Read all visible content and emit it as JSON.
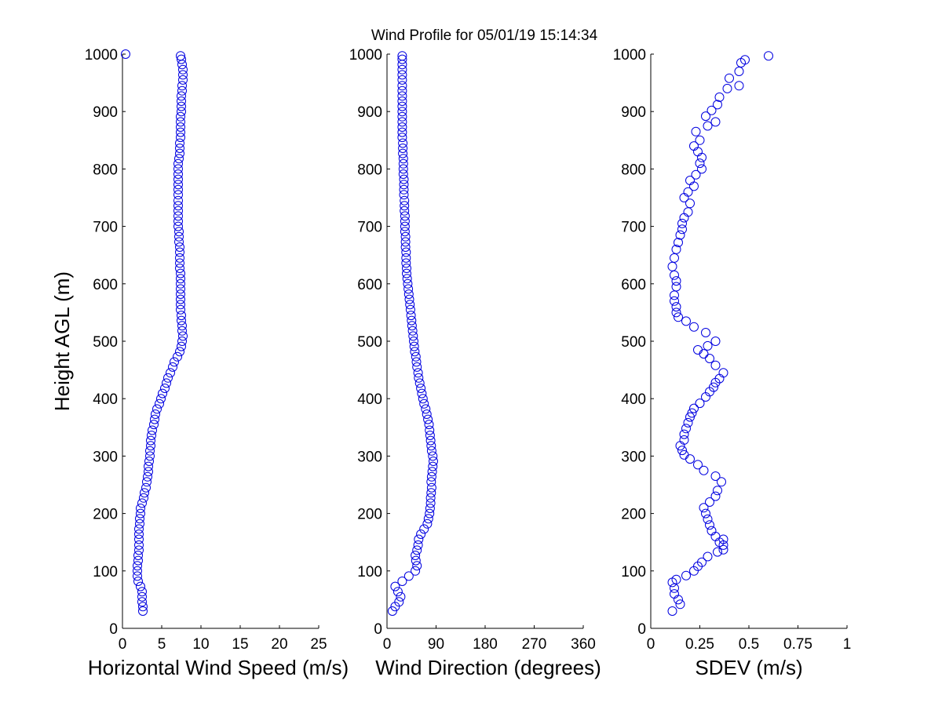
{
  "colors": {
    "marker": "#0000e0",
    "axes": "#000000",
    "background": "#ffffff"
  },
  "chart_data": {
    "title": "Wind Profile for  05/01/19 15:14:34",
    "ylabel": "Height AGL (m)",
    "ylim": [
      0,
      1000
    ],
    "yticks": [
      0,
      100,
      200,
      300,
      400,
      500,
      600,
      700,
      800,
      900,
      1000
    ],
    "marker": "circle",
    "panels": [
      {
        "type": "scatter",
        "xlabel": "Horizontal Wind Speed (m/s)",
        "xlim": [
          0,
          25
        ],
        "xticks": [
          0,
          5,
          10,
          15,
          20,
          25
        ],
        "points": [
          [
            2.6,
            30
          ],
          [
            2.6,
            38
          ],
          [
            2.5,
            46
          ],
          [
            2.5,
            55
          ],
          [
            2.5,
            64
          ],
          [
            2.3,
            73
          ],
          [
            2.0,
            82
          ],
          [
            1.9,
            91
          ],
          [
            1.9,
            100
          ],
          [
            1.9,
            109
          ],
          [
            2.0,
            118
          ],
          [
            2.0,
            127
          ],
          [
            2.1,
            136
          ],
          [
            2.1,
            145
          ],
          [
            2.1,
            155
          ],
          [
            2.1,
            164
          ],
          [
            2.1,
            173
          ],
          [
            2.2,
            182
          ],
          [
            2.2,
            191
          ],
          [
            2.3,
            200
          ],
          [
            2.3,
            209
          ],
          [
            2.5,
            218
          ],
          [
            2.7,
            227
          ],
          [
            2.8,
            236
          ],
          [
            3.0,
            245
          ],
          [
            3.1,
            255
          ],
          [
            3.2,
            264
          ],
          [
            3.3,
            273
          ],
          [
            3.3,
            282
          ],
          [
            3.4,
            291
          ],
          [
            3.5,
            300
          ],
          [
            3.5,
            309
          ],
          [
            3.6,
            318
          ],
          [
            3.6,
            327
          ],
          [
            3.7,
            336
          ],
          [
            3.8,
            345
          ],
          [
            4.0,
            355
          ],
          [
            4.1,
            364
          ],
          [
            4.2,
            373
          ],
          [
            4.4,
            382
          ],
          [
            4.7,
            391
          ],
          [
            4.9,
            400
          ],
          [
            5.1,
            409
          ],
          [
            5.4,
            418
          ],
          [
            5.6,
            427
          ],
          [
            5.8,
            436
          ],
          [
            6.1,
            445
          ],
          [
            6.4,
            455
          ],
          [
            6.6,
            464
          ],
          [
            7.0,
            473
          ],
          [
            7.3,
            482
          ],
          [
            7.5,
            491
          ],
          [
            7.6,
            500
          ],
          [
            7.7,
            509
          ],
          [
            7.6,
            518
          ],
          [
            7.6,
            527
          ],
          [
            7.5,
            536
          ],
          [
            7.5,
            545
          ],
          [
            7.4,
            555
          ],
          [
            7.4,
            564
          ],
          [
            7.4,
            573
          ],
          [
            7.4,
            582
          ],
          [
            7.4,
            591
          ],
          [
            7.4,
            600
          ],
          [
            7.4,
            609
          ],
          [
            7.4,
            618
          ],
          [
            7.3,
            627
          ],
          [
            7.3,
            636
          ],
          [
            7.3,
            645
          ],
          [
            7.3,
            655
          ],
          [
            7.3,
            664
          ],
          [
            7.2,
            673
          ],
          [
            7.2,
            682
          ],
          [
            7.2,
            691
          ],
          [
            7.1,
            700
          ],
          [
            7.1,
            709
          ],
          [
            7.1,
            718
          ],
          [
            7.1,
            727
          ],
          [
            7.1,
            736
          ],
          [
            7.1,
            745
          ],
          [
            7.1,
            755
          ],
          [
            7.1,
            764
          ],
          [
            7.1,
            773
          ],
          [
            7.1,
            782
          ],
          [
            7.1,
            791
          ],
          [
            7.1,
            800
          ],
          [
            7.1,
            809
          ],
          [
            7.2,
            818
          ],
          [
            7.3,
            827
          ],
          [
            7.3,
            836
          ],
          [
            7.3,
            845
          ],
          [
            7.4,
            855
          ],
          [
            7.4,
            864
          ],
          [
            7.4,
            873
          ],
          [
            7.4,
            882
          ],
          [
            7.4,
            891
          ],
          [
            7.5,
            900
          ],
          [
            7.5,
            909
          ],
          [
            7.5,
            918
          ],
          [
            7.5,
            927
          ],
          [
            7.6,
            936
          ],
          [
            7.6,
            945
          ],
          [
            7.7,
            955
          ],
          [
            7.7,
            964
          ],
          [
            7.7,
            973
          ],
          [
            7.6,
            982
          ],
          [
            7.5,
            991
          ],
          [
            7.4,
            997
          ],
          [
            0.4,
            1000
          ]
        ]
      },
      {
        "type": "scatter",
        "xlabel": "Wind Direction (degrees)",
        "xlim": [
          0,
          360
        ],
        "xticks": [
          0,
          90,
          180,
          270,
          360
        ],
        "points": [
          [
            10,
            30
          ],
          [
            15,
            38
          ],
          [
            22,
            46
          ],
          [
            25,
            55
          ],
          [
            20,
            64
          ],
          [
            15,
            73
          ],
          [
            28,
            82
          ],
          [
            40,
            91
          ],
          [
            52,
            100
          ],
          [
            55,
            109
          ],
          [
            53,
            118
          ],
          [
            52,
            127
          ],
          [
            55,
            136
          ],
          [
            57,
            145
          ],
          [
            58,
            155
          ],
          [
            62,
            164
          ],
          [
            68,
            173
          ],
          [
            74,
            182
          ],
          [
            76,
            191
          ],
          [
            78,
            200
          ],
          [
            79,
            209
          ],
          [
            80,
            218
          ],
          [
            80,
            227
          ],
          [
            81,
            236
          ],
          [
            82,
            245
          ],
          [
            81,
            255
          ],
          [
            82,
            264
          ],
          [
            83,
            273
          ],
          [
            84,
            282
          ],
          [
            85,
            291
          ],
          [
            84,
            300
          ],
          [
            82,
            309
          ],
          [
            81,
            318
          ],
          [
            80,
            327
          ],
          [
            79,
            336
          ],
          [
            78,
            345
          ],
          [
            77,
            355
          ],
          [
            75,
            364
          ],
          [
            73,
            373
          ],
          [
            71,
            382
          ],
          [
            68,
            391
          ],
          [
            66,
            400
          ],
          [
            64,
            409
          ],
          [
            62,
            418
          ],
          [
            60,
            427
          ],
          [
            58,
            436
          ],
          [
            57,
            445
          ],
          [
            55,
            455
          ],
          [
            54,
            464
          ],
          [
            53,
            473
          ],
          [
            51,
            482
          ],
          [
            50,
            491
          ],
          [
            49,
            500
          ],
          [
            48,
            509
          ],
          [
            47,
            518
          ],
          [
            46,
            527
          ],
          [
            45,
            536
          ],
          [
            44,
            545
          ],
          [
            43,
            555
          ],
          [
            42,
            564
          ],
          [
            41,
            573
          ],
          [
            40,
            582
          ],
          [
            39,
            591
          ],
          [
            38,
            600
          ],
          [
            37,
            609
          ],
          [
            36,
            618
          ],
          [
            36,
            627
          ],
          [
            35,
            636
          ],
          [
            35,
            645
          ],
          [
            35,
            655
          ],
          [
            34,
            664
          ],
          [
            34,
            673
          ],
          [
            34,
            682
          ],
          [
            33,
            691
          ],
          [
            33,
            700
          ],
          [
            33,
            709
          ],
          [
            33,
            718
          ],
          [
            32,
            727
          ],
          [
            32,
            736
          ],
          [
            32,
            745
          ],
          [
            31,
            755
          ],
          [
            31,
            764
          ],
          [
            31,
            773
          ],
          [
            31,
            782
          ],
          [
            30,
            791
          ],
          [
            30,
            800
          ],
          [
            30,
            809
          ],
          [
            30,
            818
          ],
          [
            29,
            827
          ],
          [
            29,
            836
          ],
          [
            29,
            845
          ],
          [
            28,
            855
          ],
          [
            28,
            864
          ],
          [
            28,
            873
          ],
          [
            28,
            882
          ],
          [
            28,
            891
          ],
          [
            28,
            900
          ],
          [
            28,
            909
          ],
          [
            28,
            918
          ],
          [
            28,
            927
          ],
          [
            28,
            936
          ],
          [
            28,
            945
          ],
          [
            28,
            955
          ],
          [
            28,
            964
          ],
          [
            28,
            973
          ],
          [
            28,
            982
          ],
          [
            28,
            991
          ],
          [
            28,
            997
          ]
        ]
      },
      {
        "type": "scatter",
        "xlabel": "SDEV  (m/s)",
        "xlim": [
          0,
          1
        ],
        "xticks": [
          0,
          0.25,
          0.5,
          0.75,
          1
        ],
        "xtick_labels": [
          "0",
          "0.25",
          "0.5",
          "0.75",
          "1"
        ],
        "points": [
          [
            0.11,
            30
          ],
          [
            0.15,
            42
          ],
          [
            0.14,
            50
          ],
          [
            0.12,
            60
          ],
          [
            0.12,
            70
          ],
          [
            0.11,
            80
          ],
          [
            0.13,
            85
          ],
          [
            0.18,
            92
          ],
          [
            0.22,
            100
          ],
          [
            0.24,
            108
          ],
          [
            0.26,
            115
          ],
          [
            0.29,
            125
          ],
          [
            0.34,
            133
          ],
          [
            0.37,
            137
          ],
          [
            0.37,
            145
          ],
          [
            0.35,
            150
          ],
          [
            0.37,
            155
          ],
          [
            0.33,
            160
          ],
          [
            0.31,
            170
          ],
          [
            0.3,
            180
          ],
          [
            0.29,
            190
          ],
          [
            0.28,
            200
          ],
          [
            0.27,
            210
          ],
          [
            0.3,
            220
          ],
          [
            0.33,
            230
          ],
          [
            0.34,
            240
          ],
          [
            0.36,
            255
          ],
          [
            0.33,
            265
          ],
          [
            0.27,
            275
          ],
          [
            0.24,
            285
          ],
          [
            0.2,
            295
          ],
          [
            0.17,
            302
          ],
          [
            0.16,
            310
          ],
          [
            0.15,
            318
          ],
          [
            0.17,
            328
          ],
          [
            0.17,
            338
          ],
          [
            0.18,
            348
          ],
          [
            0.19,
            358
          ],
          [
            0.2,
            368
          ],
          [
            0.21,
            375
          ],
          [
            0.22,
            383
          ],
          [
            0.25,
            392
          ],
          [
            0.28,
            403
          ],
          [
            0.3,
            412
          ],
          [
            0.32,
            420
          ],
          [
            0.33,
            428
          ],
          [
            0.35,
            435
          ],
          [
            0.37,
            445
          ],
          [
            0.33,
            458
          ],
          [
            0.3,
            470
          ],
          [
            0.27,
            478
          ],
          [
            0.24,
            485
          ],
          [
            0.29,
            492
          ],
          [
            0.33,
            500
          ],
          [
            0.28,
            515
          ],
          [
            0.22,
            525
          ],
          [
            0.18,
            535
          ],
          [
            0.14,
            542
          ],
          [
            0.13,
            550
          ],
          [
            0.13,
            560
          ],
          [
            0.12,
            570
          ],
          [
            0.12,
            580
          ],
          [
            0.13,
            595
          ],
          [
            0.13,
            605
          ],
          [
            0.12,
            615
          ],
          [
            0.11,
            630
          ],
          [
            0.12,
            645
          ],
          [
            0.13,
            660
          ],
          [
            0.14,
            672
          ],
          [
            0.15,
            685
          ],
          [
            0.16,
            695
          ],
          [
            0.16,
            705
          ],
          [
            0.17,
            715
          ],
          [
            0.19,
            725
          ],
          [
            0.2,
            740
          ],
          [
            0.17,
            750
          ],
          [
            0.19,
            760
          ],
          [
            0.22,
            770
          ],
          [
            0.2,
            780
          ],
          [
            0.23,
            790
          ],
          [
            0.26,
            800
          ],
          [
            0.25,
            810
          ],
          [
            0.26,
            820
          ],
          [
            0.24,
            830
          ],
          [
            0.22,
            840
          ],
          [
            0.25,
            850
          ],
          [
            0.23,
            865
          ],
          [
            0.29,
            875
          ],
          [
            0.33,
            882
          ],
          [
            0.28,
            892
          ],
          [
            0.31,
            902
          ],
          [
            0.34,
            912
          ],
          [
            0.35,
            925
          ],
          [
            0.39,
            940
          ],
          [
            0.45,
            945
          ],
          [
            0.4,
            958
          ],
          [
            0.45,
            970
          ],
          [
            0.46,
            985
          ],
          [
            0.48,
            990
          ],
          [
            0.6,
            997
          ]
        ]
      }
    ]
  }
}
